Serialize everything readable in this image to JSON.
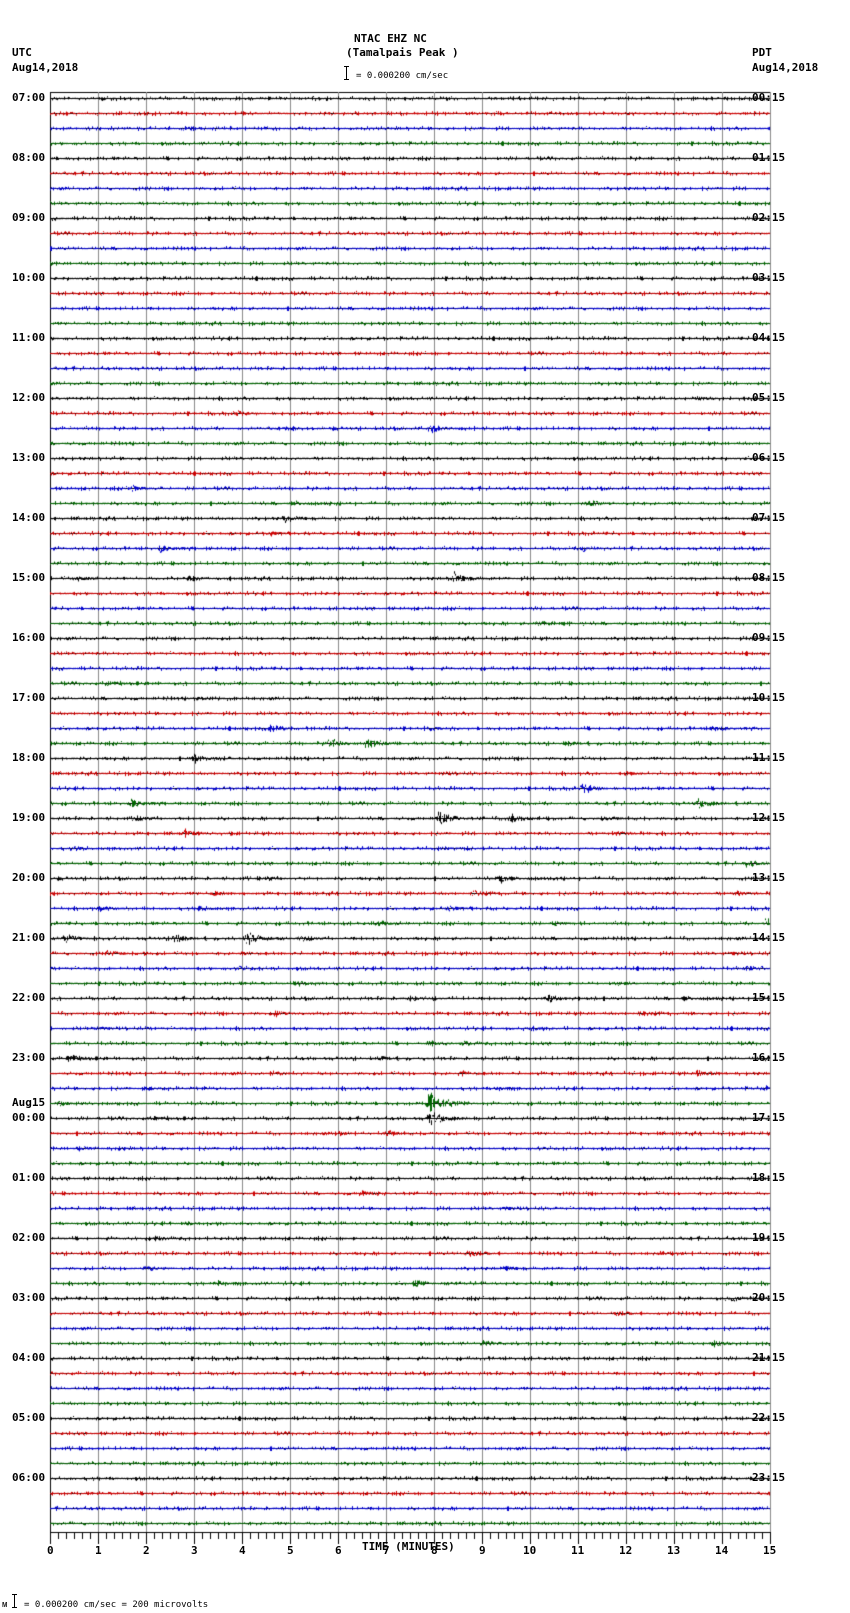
{
  "header": {
    "station": "NTAC EHZ NC",
    "location": "(Tamalpais Peak )",
    "scale_text": "= 0.000200 cm/sec",
    "left_tz": "UTC",
    "left_date": "Aug14,2018",
    "right_tz": "PDT",
    "right_date": "Aug14,2018"
  },
  "footer": {
    "marker": "ᴍ",
    "scale_text": "= 0.000200 cm/sec =      200 microvolts"
  },
  "chart_data": {
    "type": "line",
    "title": "NTAC EHZ NC (Tamalpais Peak )",
    "subtitle": "= 0.000200 cm/sec",
    "xlabel": "TIME (MINUTES)",
    "ylabel": "",
    "xlim": [
      0,
      15
    ],
    "x_ticks": [
      "0",
      "1",
      "2",
      "3",
      "4",
      "5",
      "6",
      "7",
      "8",
      "9",
      "10",
      "11",
      "12",
      "13",
      "14",
      "15"
    ],
    "grid": true,
    "rows_per_hour": 4,
    "row_count": 96,
    "row_colors": [
      "#000000",
      "#cc0000",
      "#0000cc",
      "#006400"
    ],
    "left_labels": [
      {
        "row": 0,
        "text": "07:00"
      },
      {
        "row": 4,
        "text": "08:00"
      },
      {
        "row": 8,
        "text": "09:00"
      },
      {
        "row": 12,
        "text": "10:00"
      },
      {
        "row": 16,
        "text": "11:00"
      },
      {
        "row": 20,
        "text": "12:00"
      },
      {
        "row": 24,
        "text": "13:00"
      },
      {
        "row": 28,
        "text": "14:00"
      },
      {
        "row": 32,
        "text": "15:00"
      },
      {
        "row": 36,
        "text": "16:00"
      },
      {
        "row": 40,
        "text": "17:00"
      },
      {
        "row": 44,
        "text": "18:00"
      },
      {
        "row": 48,
        "text": "19:00"
      },
      {
        "row": 52,
        "text": "20:00"
      },
      {
        "row": 56,
        "text": "21:00"
      },
      {
        "row": 60,
        "text": "22:00"
      },
      {
        "row": 64,
        "text": "23:00"
      },
      {
        "row": 67,
        "text": "Aug15"
      },
      {
        "row": 68,
        "text": "00:00"
      },
      {
        "row": 72,
        "text": "01:00"
      },
      {
        "row": 76,
        "text": "02:00"
      },
      {
        "row": 80,
        "text": "03:00"
      },
      {
        "row": 84,
        "text": "04:00"
      },
      {
        "row": 88,
        "text": "05:00"
      },
      {
        "row": 92,
        "text": "06:00"
      }
    ],
    "right_labels": [
      {
        "row": 0,
        "text": "00:15"
      },
      {
        "row": 4,
        "text": "01:15"
      },
      {
        "row": 8,
        "text": "02:15"
      },
      {
        "row": 12,
        "text": "03:15"
      },
      {
        "row": 16,
        "text": "04:15"
      },
      {
        "row": 20,
        "text": "05:15"
      },
      {
        "row": 24,
        "text": "06:15"
      },
      {
        "row": 28,
        "text": "07:15"
      },
      {
        "row": 32,
        "text": "08:15"
      },
      {
        "row": 36,
        "text": "09:15"
      },
      {
        "row": 40,
        "text": "10:15"
      },
      {
        "row": 44,
        "text": "11:15"
      },
      {
        "row": 48,
        "text": "12:15"
      },
      {
        "row": 52,
        "text": "13:15"
      },
      {
        "row": 56,
        "text": "14:15"
      },
      {
        "row": 60,
        "text": "15:15"
      },
      {
        "row": 64,
        "text": "16:15"
      },
      {
        "row": 68,
        "text": "17:15"
      },
      {
        "row": 72,
        "text": "18:15"
      },
      {
        "row": 76,
        "text": "19:15"
      },
      {
        "row": 80,
        "text": "20:15"
      },
      {
        "row": 84,
        "text": "21:15"
      },
      {
        "row": 88,
        "text": "22:15"
      },
      {
        "row": 92,
        "text": "23:15"
      }
    ],
    "events": [
      {
        "row": 20,
        "minute": 13.5,
        "amp": 3
      },
      {
        "row": 21,
        "minute": 3.9,
        "amp": 4
      },
      {
        "row": 22,
        "minute": 4.9,
        "amp": 3
      },
      {
        "row": 22,
        "minute": 7.9,
        "amp": 6
      },
      {
        "row": 26,
        "minute": 1.7,
        "amp": 4
      },
      {
        "row": 27,
        "minute": 5.1,
        "amp": 3
      },
      {
        "row": 27,
        "minute": 11.2,
        "amp": 4
      },
      {
        "row": 28,
        "minute": 4.9,
        "amp": 5
      },
      {
        "row": 29,
        "minute": 4.6,
        "amp": 3
      },
      {
        "row": 30,
        "minute": 2.3,
        "amp": 5
      },
      {
        "row": 30,
        "minute": 11.1,
        "amp": 4
      },
      {
        "row": 32,
        "minute": 0.6,
        "amp": 3
      },
      {
        "row": 32,
        "minute": 2.9,
        "amp": 4
      },
      {
        "row": 32,
        "minute": 8.4,
        "amp": 8
      },
      {
        "row": 35,
        "minute": 10.2,
        "amp": 3
      },
      {
        "row": 39,
        "minute": 1.2,
        "amp": 3
      },
      {
        "row": 40,
        "minute": 3.0,
        "amp": 3
      },
      {
        "row": 42,
        "minute": 4.6,
        "amp": 5
      },
      {
        "row": 42,
        "minute": 7.9,
        "amp": 3
      },
      {
        "row": 42,
        "minute": 13.8,
        "amp": 4
      },
      {
        "row": 43,
        "minute": 5.8,
        "amp": 7
      },
      {
        "row": 43,
        "minute": 6.6,
        "amp": 8
      },
      {
        "row": 43,
        "minute": 10.8,
        "amp": 3
      },
      {
        "row": 44,
        "minute": 3.0,
        "amp": 6
      },
      {
        "row": 45,
        "minute": 8.2,
        "amp": 3
      },
      {
        "row": 45,
        "minute": 12.0,
        "amp": 3
      },
      {
        "row": 46,
        "minute": 11.1,
        "amp": 8
      },
      {
        "row": 47,
        "minute": 1.7,
        "amp": 6
      },
      {
        "row": 47,
        "minute": 13.5,
        "amp": 7
      },
      {
        "row": 48,
        "minute": 1.8,
        "amp": 4
      },
      {
        "row": 48,
        "minute": 8.1,
        "amp": 9
      },
      {
        "row": 48,
        "minute": 9.6,
        "amp": 6
      },
      {
        "row": 48,
        "minute": 11.5,
        "amp": 4
      },
      {
        "row": 49,
        "minute": 2.8,
        "amp": 5
      },
      {
        "row": 49,
        "minute": 11.8,
        "amp": 4
      },
      {
        "row": 50,
        "minute": 0.5,
        "amp": 3
      },
      {
        "row": 50,
        "minute": 8.1,
        "amp": 3
      },
      {
        "row": 51,
        "minute": 14.5,
        "amp": 5
      },
      {
        "row": 52,
        "minute": 4.5,
        "amp": 3
      },
      {
        "row": 52,
        "minute": 9.4,
        "amp": 5
      },
      {
        "row": 53,
        "minute": 3.4,
        "amp": 3
      },
      {
        "row": 53,
        "minute": 8.8,
        "amp": 4
      },
      {
        "row": 53,
        "minute": 14.3,
        "amp": 4
      },
      {
        "row": 54,
        "minute": 1.0,
        "amp": 5
      },
      {
        "row": 54,
        "minute": 3.1,
        "amp": 4
      },
      {
        "row": 54,
        "minute": 8.3,
        "amp": 4
      },
      {
        "row": 55,
        "minute": 6.8,
        "amp": 4
      },
      {
        "row": 55,
        "minute": 10.5,
        "amp": 3
      },
      {
        "row": 55,
        "minute": 14.9,
        "amp": 6
      },
      {
        "row": 56,
        "minute": 0.3,
        "amp": 6
      },
      {
        "row": 56,
        "minute": 2.6,
        "amp": 5
      },
      {
        "row": 56,
        "minute": 4.1,
        "amp": 9
      },
      {
        "row": 56,
        "minute": 5.2,
        "amp": 5
      },
      {
        "row": 57,
        "minute": 1.2,
        "amp": 4
      },
      {
        "row": 57,
        "minute": 4.0,
        "amp": 3
      },
      {
        "row": 57,
        "minute": 14.2,
        "amp": 3
      },
      {
        "row": 58,
        "minute": 3.9,
        "amp": 5
      },
      {
        "row": 58,
        "minute": 14.5,
        "amp": 3
      },
      {
        "row": 59,
        "minute": 5.2,
        "amp": 4
      },
      {
        "row": 59,
        "minute": 11.8,
        "amp": 3
      },
      {
        "row": 60,
        "minute": 7.5,
        "amp": 3
      },
      {
        "row": 60,
        "minute": 10.4,
        "amp": 5
      },
      {
        "row": 60,
        "minute": 13.2,
        "amp": 3
      },
      {
        "row": 61,
        "minute": 4.7,
        "amp": 4
      },
      {
        "row": 61,
        "minute": 12.3,
        "amp": 3
      },
      {
        "row": 62,
        "minute": 1.0,
        "amp": 3
      },
      {
        "row": 62,
        "minute": 10.0,
        "amp": 3
      },
      {
        "row": 63,
        "minute": 7.9,
        "amp": 4
      },
      {
        "row": 63,
        "minute": 8.6,
        "amp": 3
      },
      {
        "row": 64,
        "minute": 0.4,
        "amp": 5
      },
      {
        "row": 64,
        "minute": 6.9,
        "amp": 3
      },
      {
        "row": 64,
        "minute": 14.9,
        "amp": 3
      },
      {
        "row": 65,
        "minute": 4.6,
        "amp": 4
      },
      {
        "row": 65,
        "minute": 8.6,
        "amp": 4
      },
      {
        "row": 65,
        "minute": 13.5,
        "amp": 5
      },
      {
        "row": 66,
        "minute": 2.0,
        "amp": 3
      },
      {
        "row": 66,
        "minute": 9.3,
        "amp": 3
      },
      {
        "row": 66,
        "minute": 14.9,
        "amp": 4
      },
      {
        "row": 67,
        "minute": 0.2,
        "amp": 3
      },
      {
        "row": 67,
        "minute": 7.9,
        "amp": 18
      },
      {
        "row": 67,
        "minute": 8.3,
        "amp": 6
      },
      {
        "row": 68,
        "minute": 2.1,
        "amp": 3
      },
      {
        "row": 68,
        "minute": 7.9,
        "amp": 12
      },
      {
        "row": 69,
        "minute": 7.0,
        "amp": 4
      },
      {
        "row": 69,
        "minute": 6.0,
        "amp": 3
      },
      {
        "row": 70,
        "minute": 0.6,
        "amp": 3
      },
      {
        "row": 70,
        "minute": 10.2,
        "amp": 3
      },
      {
        "row": 73,
        "minute": 6.5,
        "amp": 3
      },
      {
        "row": 74,
        "minute": 9.5,
        "amp": 3
      },
      {
        "row": 75,
        "minute": 2.8,
        "amp": 3
      },
      {
        "row": 76,
        "minute": 2.2,
        "amp": 3
      },
      {
        "row": 77,
        "minute": 8.7,
        "amp": 5
      },
      {
        "row": 77,
        "minute": 12.7,
        "amp": 3
      },
      {
        "row": 78,
        "minute": 2.0,
        "amp": 4
      },
      {
        "row": 78,
        "minute": 9.5,
        "amp": 3
      },
      {
        "row": 79,
        "minute": 7.6,
        "amp": 4
      },
      {
        "row": 79,
        "minute": 3.5,
        "amp": 3
      },
      {
        "row": 80,
        "minute": 14.2,
        "amp": 4
      },
      {
        "row": 81,
        "minute": 11.8,
        "amp": 3
      },
      {
        "row": 83,
        "minute": 9.0,
        "amp": 4
      },
      {
        "row": 83,
        "minute": 13.8,
        "amp": 5
      },
      {
        "row": 84,
        "minute": 1.5,
        "amp": 3
      }
    ]
  }
}
